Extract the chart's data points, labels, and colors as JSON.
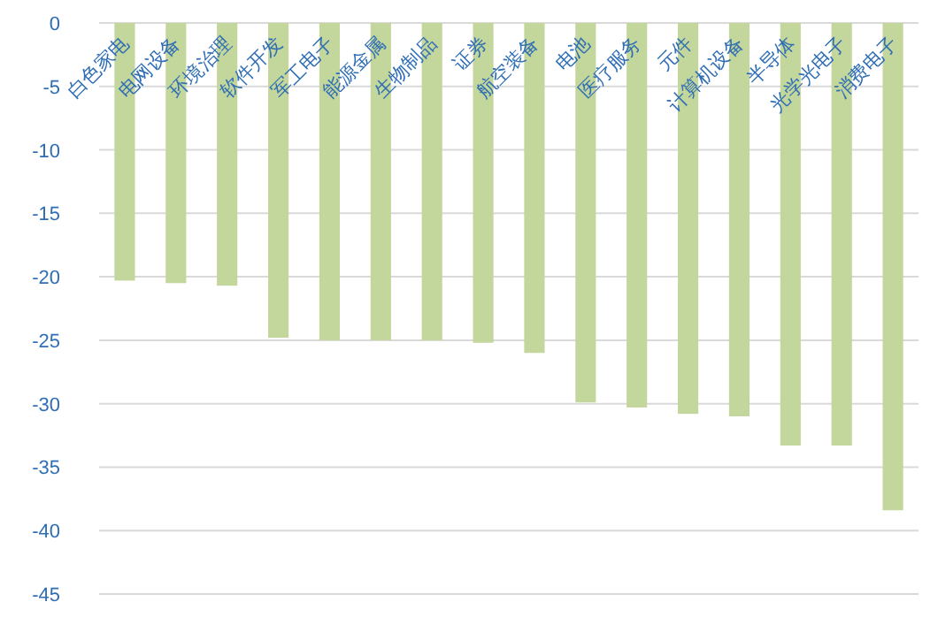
{
  "chart_data": {
    "type": "bar",
    "categories": [
      "白色家电",
      "电网设备",
      "环境治理",
      "软件开发",
      "军工电子",
      "能源金属",
      "生物制品",
      "证券",
      "航空装备",
      "电池",
      "医疗服务",
      "元件",
      "计算机设备",
      "半导体",
      "光学光电子",
      "消费电子"
    ],
    "values": [
      -20.3,
      -20.5,
      -20.7,
      -24.8,
      -25.0,
      -25.0,
      -25.0,
      -25.2,
      -26.0,
      -29.9,
      -30.3,
      -30.8,
      -31.0,
      -33.3,
      -33.3,
      -38.4
    ],
    "color": "#c3d69b",
    "ylim": [
      -45,
      0
    ],
    "yticks": [
      0,
      -5,
      -10,
      -15,
      -20,
      -25,
      -30,
      -35,
      -40,
      -45
    ],
    "grid": "y"
  }
}
